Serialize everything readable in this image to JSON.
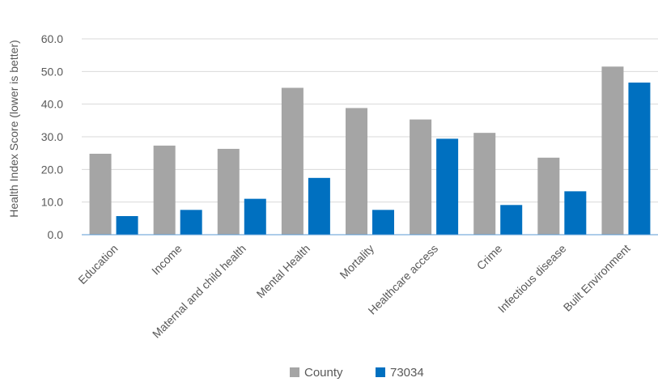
{
  "chart_data": {
    "type": "bar",
    "title": "",
    "xlabel": "",
    "ylabel": "Health Index Score (lower is better)",
    "ylim": [
      0,
      60
    ],
    "yticks": [
      "0.0",
      "10.0",
      "20.0",
      "30.0",
      "40.0",
      "50.0",
      "60.0"
    ],
    "grid": true,
    "legend_position": "bottom",
    "categories": [
      "Education",
      "Income",
      "Maternal and child health",
      "Mental Health",
      "Mortality",
      "Healthcare access",
      "Crime",
      "Infectious disease",
      "Built Environment"
    ],
    "series": [
      {
        "name": "County",
        "color": "#a5a5a5",
        "values": [
          24.8,
          27.3,
          26.3,
          45.0,
          38.8,
          35.3,
          31.2,
          23.6,
          51.5
        ]
      },
      {
        "name": "73034",
        "color": "#0070c0",
        "values": [
          5.7,
          7.6,
          11.0,
          17.4,
          7.6,
          29.4,
          9.1,
          13.3,
          46.6
        ]
      }
    ]
  }
}
